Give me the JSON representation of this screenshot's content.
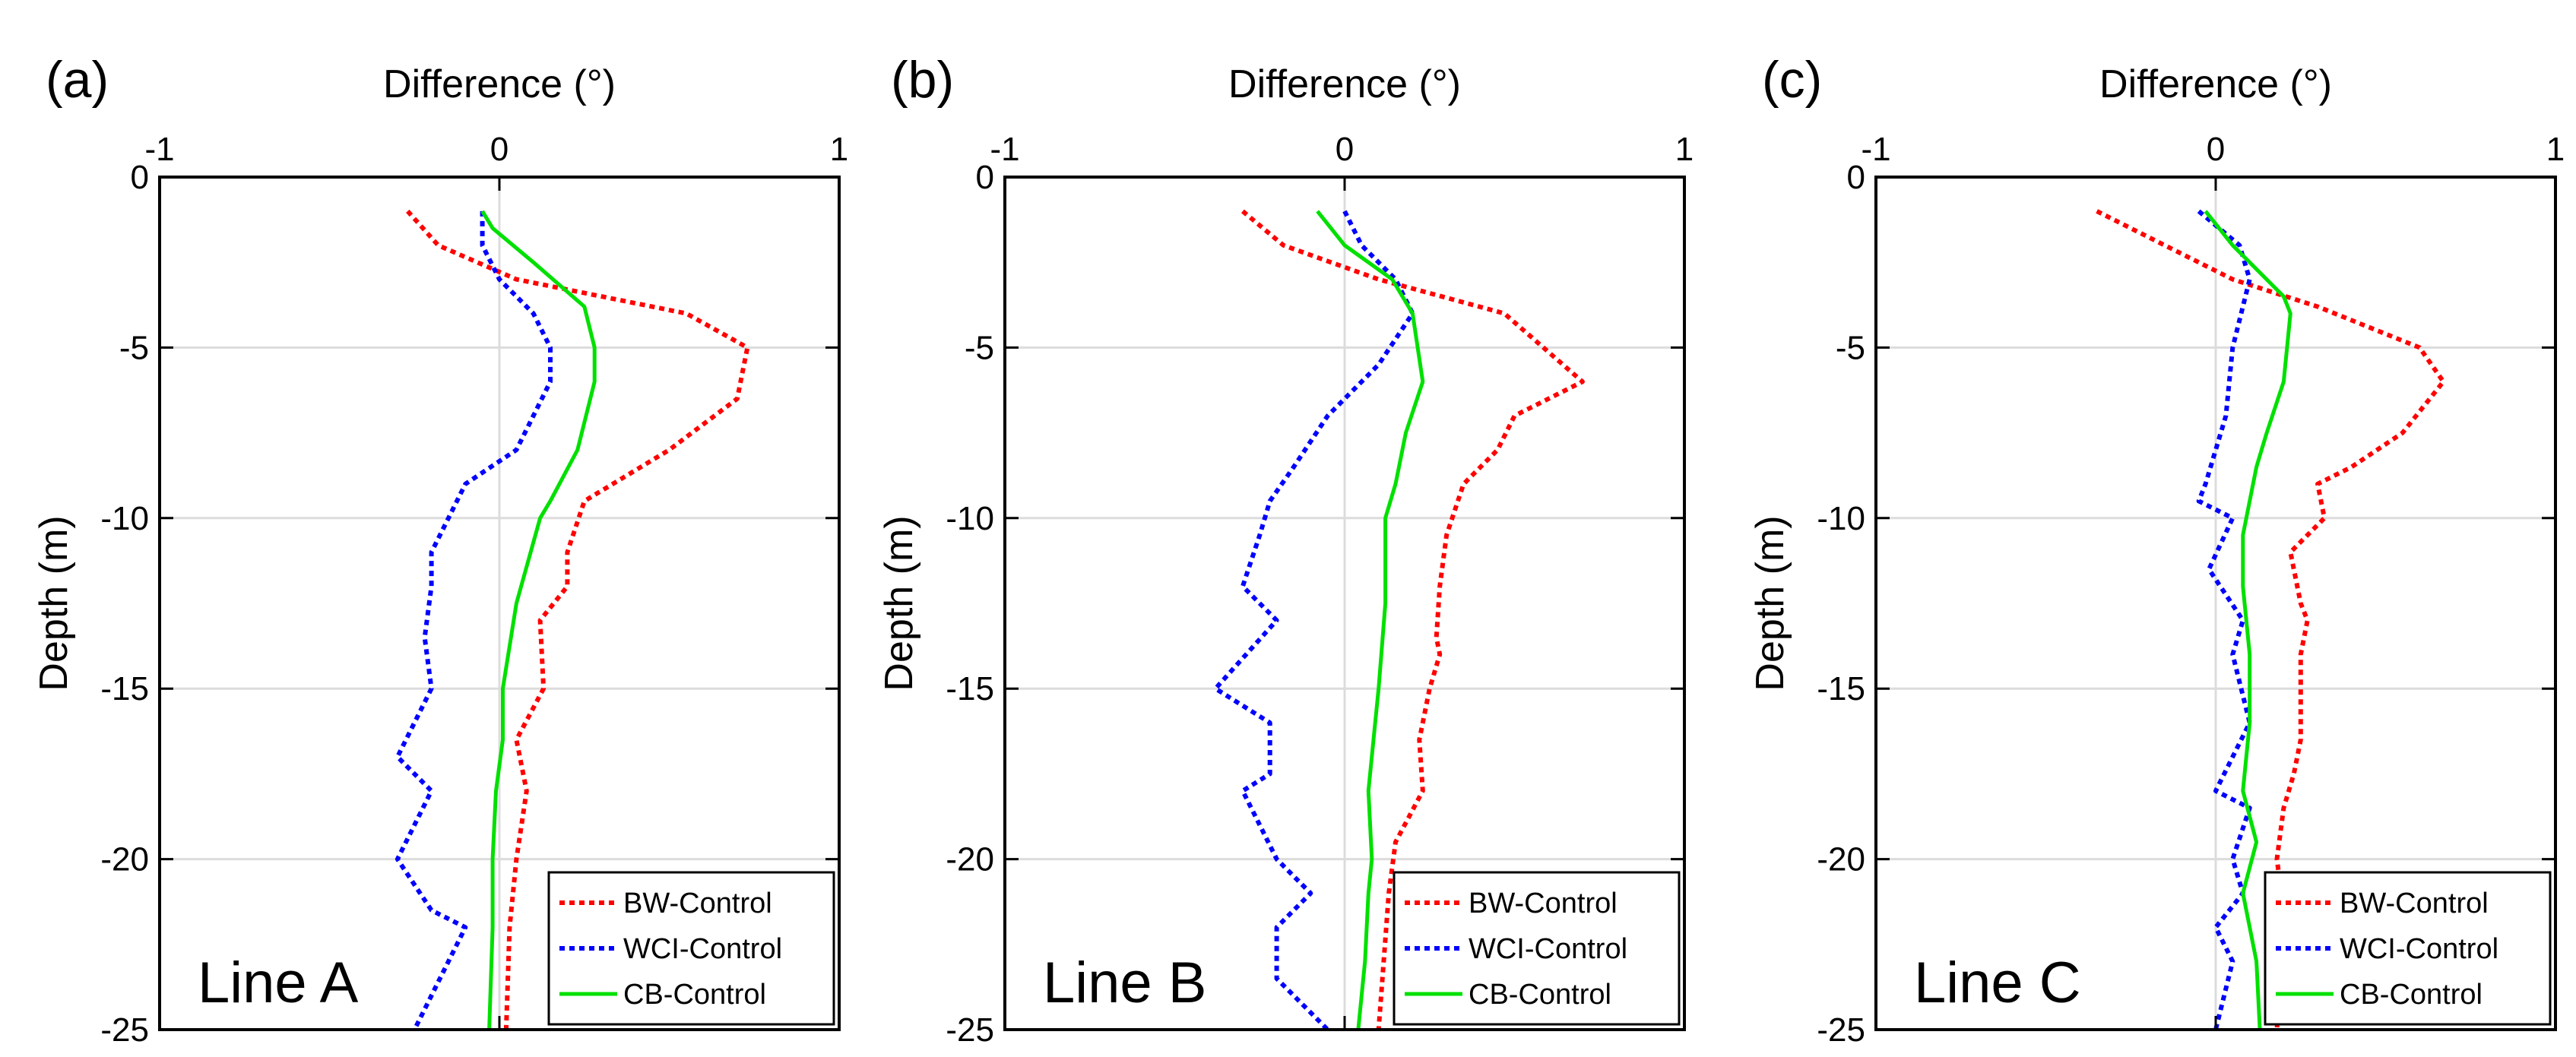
{
  "chart_data": [
    {
      "type": "line",
      "panel_label": "(a)",
      "line_label": "Line A",
      "xlabel": "Difference (°)",
      "ylabel": "Depth (m)",
      "xlim": [
        -1,
        1
      ],
      "ylim": [
        -25,
        0
      ],
      "xticks": [
        -1,
        0,
        1
      ],
      "yticks": [
        0,
        -5,
        -10,
        -15,
        -20,
        -25
      ],
      "grid": true,
      "legend_position": "bottom-right",
      "series": [
        {
          "name": "BW-Control",
          "color": "#ff0000",
          "style": "dotted",
          "x": [
            -0.27,
            -0.18,
            0.05,
            0.55,
            0.73,
            0.7,
            0.5,
            0.25,
            0.2,
            0.2,
            0.12,
            0.13,
            0.05,
            0.08,
            0.05,
            0.03,
            0.02
          ],
          "y": [
            -1,
            -2,
            -3,
            -4,
            -5,
            -6.5,
            -8,
            -9.5,
            -11,
            -12,
            -13,
            -15,
            -16.5,
            -18,
            -20,
            -22,
            -25
          ]
        },
        {
          "name": "WCI-Control",
          "color": "#0000ff",
          "style": "dotted",
          "x": [
            -0.05,
            -0.05,
            0.0,
            0.1,
            0.15,
            0.15,
            0.05,
            -0.1,
            -0.15,
            -0.2,
            -0.2,
            -0.22,
            -0.2,
            -0.3,
            -0.2,
            -0.3,
            -0.2,
            -0.1,
            -0.25
          ],
          "y": [
            -1,
            -2,
            -3,
            -4,
            -5,
            -6,
            -8,
            -9,
            -10,
            -11,
            -12,
            -13.5,
            -15,
            -17,
            -18,
            -20,
            -21.5,
            -22,
            -25
          ]
        },
        {
          "name": "CB-Control",
          "color": "#00e000",
          "style": "solid",
          "x": [
            -0.05,
            -0.02,
            0.1,
            0.25,
            0.28,
            0.28,
            0.23,
            0.15,
            0.12,
            0.05,
            0.01,
            0.01,
            -0.01,
            -0.02,
            -0.02,
            -0.03
          ],
          "y": [
            -1,
            -1.5,
            -2.5,
            -3.8,
            -5,
            -6,
            -8,
            -9.5,
            -10,
            -12.5,
            -15,
            -16.5,
            -18,
            -20,
            -22,
            -25
          ]
        }
      ]
    },
    {
      "type": "line",
      "panel_label": "(b)",
      "line_label": "Line B",
      "xlabel": "Difference (°)",
      "ylabel": "Depth (m)",
      "xlim": [
        -1,
        1
      ],
      "ylim": [
        -25,
        0
      ],
      "xticks": [
        -1,
        0,
        1
      ],
      "yticks": [
        0,
        -5,
        -10,
        -15,
        -20,
        -25
      ],
      "grid": true,
      "legend_position": "bottom-right",
      "series": [
        {
          "name": "BW-Control",
          "color": "#ff0000",
          "style": "dotted",
          "x": [
            -0.3,
            -0.18,
            0.1,
            0.47,
            0.7,
            0.5,
            0.45,
            0.35,
            0.3,
            0.28,
            0.27,
            0.28,
            0.25,
            0.22,
            0.23,
            0.15,
            0.13,
            0.1
          ],
          "y": [
            -1,
            -2,
            -3,
            -4,
            -6,
            -7,
            -8,
            -9,
            -10.5,
            -12,
            -13.5,
            -14,
            -15,
            -16.5,
            -18,
            -19.5,
            -21,
            -25
          ]
        },
        {
          "name": "WCI-Control",
          "color": "#0000ff",
          "style": "dotted",
          "x": [
            0.0,
            0.05,
            0.15,
            0.2,
            0.1,
            -0.05,
            -0.15,
            -0.22,
            -0.25,
            -0.3,
            -0.2,
            -0.38,
            -0.22,
            -0.22,
            -0.3,
            -0.25,
            -0.2,
            -0.1,
            -0.2,
            -0.2,
            -0.05
          ],
          "y": [
            -1,
            -2,
            -3,
            -4,
            -5.5,
            -7,
            -8.5,
            -9.5,
            -10.5,
            -12,
            -13,
            -15,
            -16,
            -17.5,
            -18,
            -19,
            -20,
            -21,
            -22,
            -23.5,
            -25
          ]
        },
        {
          "name": "CB-Control",
          "color": "#00e000",
          "style": "solid",
          "x": [
            -0.08,
            0.0,
            0.14,
            0.2,
            0.23,
            0.18,
            0.15,
            0.12,
            0.12,
            0.1,
            0.09,
            0.07,
            0.08,
            0.07,
            0.06,
            0.04
          ],
          "y": [
            -1,
            -2,
            -3,
            -4,
            -6,
            -7.5,
            -9,
            -10,
            -12.5,
            -15,
            -16,
            -18,
            -20,
            -21,
            -23,
            -25
          ]
        }
      ]
    },
    {
      "type": "line",
      "panel_label": "(c)",
      "line_label": "Line C",
      "xlabel": "Difference (°)",
      "ylabel": "Depth (m)",
      "xlim": [
        -1,
        1
      ],
      "ylim": [
        -25,
        0
      ],
      "xticks": [
        -1,
        0,
        1
      ],
      "yticks": [
        0,
        -5,
        -10,
        -15,
        -20,
        -25
      ],
      "grid": true,
      "legend_position": "bottom-right",
      "series": [
        {
          "name": "BW-Control",
          "color": "#ff0000",
          "style": "dotted",
          "x": [
            -0.35,
            -0.15,
            0.05,
            0.3,
            0.6,
            0.67,
            0.55,
            0.4,
            0.3,
            0.32,
            0.22,
            0.25,
            0.27,
            0.25,
            0.25,
            0.23,
            0.2,
            0.18,
            0.2,
            0.18
          ],
          "y": [
            -1,
            -2,
            -3,
            -3.8,
            -5,
            -6,
            -7.5,
            -8.5,
            -9,
            -10,
            -11,
            -12.5,
            -13,
            -14,
            -16.5,
            -17.5,
            -18.5,
            -20,
            -21.5,
            -25
          ]
        },
        {
          "name": "WCI-Control",
          "color": "#0000ff",
          "style": "dotted",
          "x": [
            -0.05,
            0.07,
            0.1,
            0.05,
            0.03,
            0.0,
            -0.03,
            -0.05,
            0.05,
            -0.02,
            0.08,
            0.05,
            0.1,
            0.0,
            0.1,
            0.05,
            0.08,
            0.0,
            0.05,
            0.0
          ],
          "y": [
            -1,
            -2,
            -3,
            -5,
            -7,
            -8,
            -9,
            -9.5,
            -10,
            -11.5,
            -13,
            -14,
            -16,
            -18,
            -18.5,
            -20,
            -21,
            -22,
            -23,
            -25
          ]
        },
        {
          "name": "CB-Control",
          "color": "#00e000",
          "style": "solid",
          "x": [
            -0.03,
            0.05,
            0.2,
            0.22,
            0.2,
            0.15,
            0.12,
            0.08,
            0.08,
            0.1,
            0.1,
            0.08,
            0.12,
            0.08,
            0.12,
            0.13
          ],
          "y": [
            -1,
            -2,
            -3.5,
            -4,
            -6,
            -7.5,
            -8.5,
            -10.5,
            -12,
            -14,
            -16,
            -18,
            -19.5,
            -21,
            -23,
            -25
          ]
        }
      ]
    }
  ]
}
